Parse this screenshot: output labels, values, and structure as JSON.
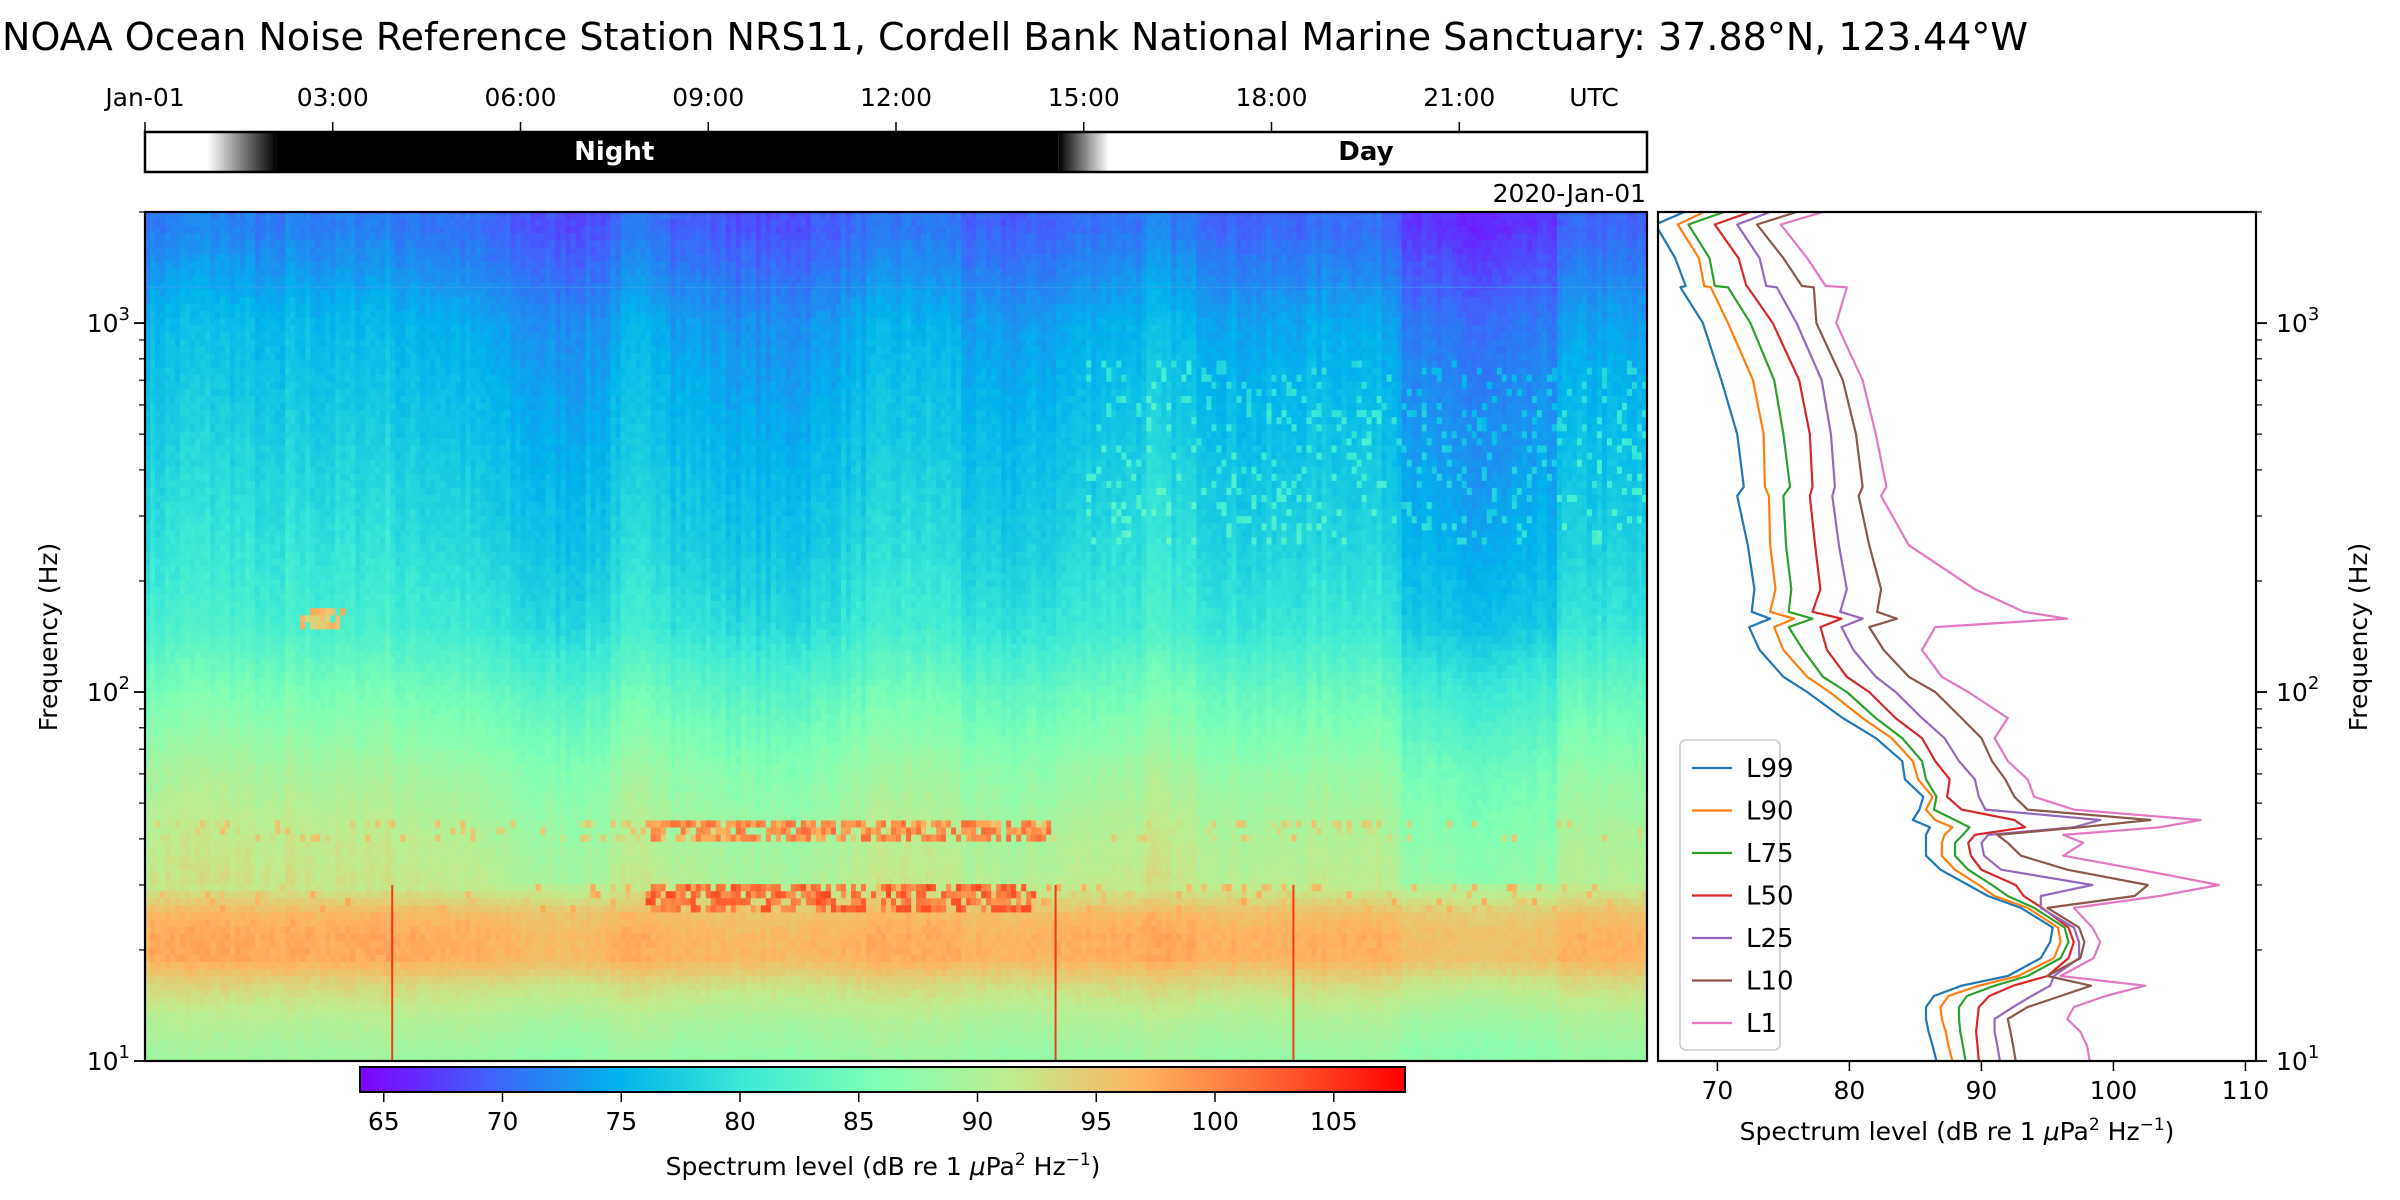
{
  "chart_data": [
    {
      "id": "spectrogram",
      "type": "heatmap",
      "title": "NOAA Ocean Noise Reference Station NRS11, Cordell Bank National Marine Sanctuary:  37.88°N, 123.44°W",
      "date_label": "2020-Jan-01",
      "xlabel": "",
      "ylabel": "Frequency (Hz)",
      "yscale": "log",
      "ylim": [
        10,
        2000
      ],
      "xlim_hours": [
        0,
        24
      ],
      "time_ticks": [
        {
          "hour": 0,
          "label": "Jan-01"
        },
        {
          "hour": 3,
          "label": "03:00"
        },
        {
          "hour": 6,
          "label": "06:00"
        },
        {
          "hour": 9,
          "label": "09:00"
        },
        {
          "hour": 12,
          "label": "12:00"
        },
        {
          "hour": 15,
          "label": "15:00"
        },
        {
          "hour": 18,
          "label": "18:00"
        },
        {
          "hour": 21,
          "label": "21:00"
        }
      ],
      "time_unit_label": "UTC",
      "y_ticks": [
        {
          "value": 10,
          "base": "10",
          "exp": "1"
        },
        {
          "value": 100,
          "base": "10",
          "exp": "2"
        },
        {
          "value": 1000,
          "base": "10",
          "exp": "3"
        }
      ],
      "colormap": "rainbow",
      "clim": [
        64,
        108
      ],
      "colorbar": {
        "label": "Spectrum level (dB re 1 μPa² Hz⁻¹)",
        "label_main": "Spectrum level (dB re 1 ",
        "label_mu": "μ",
        "label_pa": "Pa",
        "label_sup1": "2",
        "label_hz": " Hz",
        "label_sup2": "−1",
        "label_close": ")",
        "ticks": [
          65,
          70,
          75,
          80,
          85,
          90,
          95,
          100,
          105
        ]
      },
      "background_profile": {
        "freq_hz": [
          10,
          13,
          16,
          19,
          22,
          25,
          30,
          40,
          60,
          100,
          150,
          250,
          500,
          1000,
          1800
        ],
        "level_db": [
          88,
          90,
          93,
          97,
          97,
          96,
          91,
          90,
          88,
          84,
          80,
          78,
          76,
          74,
          70
        ]
      },
      "bands": [
        {
          "name": "shipping 40 Hz band",
          "freq_hz": 42,
          "level_db": 102,
          "hours": [
            8,
            14.5
          ]
        },
        {
          "name": "shipping 28 Hz band",
          "freq_hz": 28,
          "level_db": 104,
          "hours": [
            8,
            14.2
          ]
        },
        {
          "name": "tone 160 Hz",
          "freq_hz": 158,
          "level_db": 98,
          "hours": [
            2.5,
            3.2
          ]
        }
      ],
      "daynight": {
        "segments": [
          {
            "label": "Night",
            "start_hour": 2.1,
            "end_hour": 14.6
          },
          {
            "label": "Day",
            "start_hour": 15.4,
            "end_hour": 24
          }
        ],
        "twilight": [
          [
            1.0,
            2.1
          ],
          [
            14.6,
            15.4
          ]
        ]
      }
    },
    {
      "id": "percentile-profile",
      "type": "line",
      "xlabel": "Spectrum level (dB re 1 μPa² Hz⁻¹)",
      "ylabel": "Frequency (Hz)",
      "xlim": [
        65.5,
        110.8
      ],
      "ylim": [
        10,
        2000
      ],
      "yscale": "log",
      "x_ticks": [
        70,
        80,
        90,
        100,
        110
      ],
      "y_ticks": [
        {
          "value": 10,
          "base": "10",
          "exp": "1"
        },
        {
          "value": 100,
          "base": "10",
          "exp": "2"
        },
        {
          "value": 1000,
          "base": "10",
          "exp": "3"
        }
      ],
      "legend_position": "lower-left",
      "freq_hz": [
        2000,
        1850,
        1500,
        1260,
        1250,
        1000,
        700,
        500,
        360,
        340,
        250,
        190,
        165,
        158,
        150,
        130,
        110,
        100,
        85,
        75,
        65,
        58,
        52,
        48,
        45,
        43,
        41,
        39,
        36,
        33,
        30,
        28,
        26,
        23,
        21,
        19,
        17,
        16,
        15,
        14,
        13,
        12,
        11,
        10
      ],
      "series": [
        {
          "name": "L99",
          "color": "#1f77b4",
          "values": [
            67.5,
            65.3,
            66.8,
            67.6,
            67.2,
            68.9,
            70.3,
            71.5,
            72.0,
            71.5,
            72.3,
            72.8,
            72.6,
            74.0,
            72.4,
            73.2,
            75.0,
            76.8,
            79.5,
            82.0,
            84.0,
            84.2,
            85.6,
            85.3,
            84.8,
            86.1,
            85.8,
            85.8,
            85.8,
            86.9,
            89.0,
            90.5,
            93.0,
            95.4,
            95.2,
            94.5,
            92.0,
            88.5,
            86.4,
            85.8,
            85.8,
            86.0,
            86.3,
            86.6
          ]
        },
        {
          "name": "L90",
          "color": "#ff7f0e",
          "values": [
            69.0,
            67.0,
            68.6,
            69.0,
            69.5,
            70.8,
            72.7,
            73.5,
            73.6,
            73.9,
            74.0,
            74.4,
            74.0,
            75.8,
            74.3,
            75.0,
            76.8,
            78.5,
            81.0,
            83.2,
            84.8,
            85.2,
            86.3,
            85.8,
            86.5,
            87.8,
            87.2,
            87.0,
            87.0,
            88.0,
            89.8,
            91.0,
            93.5,
            95.8,
            96.0,
            95.5,
            92.8,
            89.8,
            87.5,
            86.9,
            87.0,
            87.3,
            87.5,
            87.8
          ]
        },
        {
          "name": "L75",
          "color": "#2ca02c",
          "values": [
            70.5,
            67.8,
            69.4,
            69.8,
            70.8,
            72.5,
            74.3,
            75.0,
            75.5,
            75.0,
            75.2,
            75.6,
            75.4,
            77.2,
            75.4,
            76.5,
            78.0,
            79.8,
            82.0,
            84.0,
            85.5,
            85.8,
            86.6,
            86.4,
            88.0,
            89.1,
            88.6,
            88.0,
            88.0,
            89.0,
            90.8,
            92.0,
            94.0,
            96.3,
            96.6,
            96.0,
            93.5,
            91.0,
            88.9,
            88.3,
            88.3,
            88.4,
            88.6,
            88.8
          ]
        },
        {
          "name": "L50",
          "color": "#d62728",
          "values": [
            72.5,
            69.8,
            71.6,
            72.2,
            72.3,
            74.2,
            76.2,
            77.0,
            77.2,
            77.0,
            77.4,
            77.8,
            77.2,
            79.4,
            77.8,
            78.3,
            79.8,
            81.5,
            83.5,
            85.5,
            86.5,
            87.6,
            87.4,
            88.5,
            92.5,
            93.3,
            89.5,
            89.0,
            89.2,
            90.0,
            92.6,
            93.2,
            94.6,
            96.6,
            97.0,
            96.6,
            95.0,
            92.4,
            90.6,
            89.8,
            89.7,
            89.6,
            89.7,
            89.8
          ]
        },
        {
          "name": "L25",
          "color": "#9467bd",
          "values": [
            74.0,
            71.5,
            73.2,
            73.7,
            74.5,
            76.0,
            77.9,
            78.6,
            78.9,
            78.7,
            79.2,
            79.8,
            79.3,
            81.0,
            79.4,
            80.3,
            82.0,
            83.5,
            85.5,
            87.2,
            88.3,
            89.5,
            89.8,
            90.3,
            99.0,
            97.0,
            90.5,
            90.0,
            90.2,
            91.5,
            98.4,
            94.5,
            94.5,
            97.0,
            97.4,
            97.4,
            95.5,
            95.2,
            93.8,
            92.4,
            91.0,
            91.0,
            91.2,
            91.4
          ]
        },
        {
          "name": "L10",
          "color": "#8c564b",
          "values": [
            76.0,
            73.0,
            75.0,
            76.4,
            77.3,
            77.5,
            79.5,
            80.5,
            81.0,
            80.7,
            81.5,
            82.4,
            82.1,
            83.6,
            81.5,
            82.6,
            84.5,
            86.5,
            88.5,
            90.0,
            90.8,
            91.8,
            92.5,
            93.5,
            102.8,
            97.5,
            91.2,
            92.0,
            93.0,
            96.5,
            102.6,
            101.6,
            95.0,
            97.4,
            97.8,
            97.5,
            95.0,
            98.3,
            96.0,
            93.5,
            92.0,
            92.2,
            92.4,
            92.6
          ]
        },
        {
          "name": "L1",
          "color": "#e377c2",
          "values": [
            78.0,
            74.8,
            76.8,
            78.2,
            79.8,
            79.0,
            81.0,
            82.0,
            82.8,
            82.4,
            84.5,
            89.5,
            93.2,
            96.5,
            86.5,
            85.5,
            87.0,
            89.0,
            92.0,
            91.0,
            92.0,
            93.5,
            94.0,
            97.0,
            106.6,
            103.5,
            96.2,
            97.7,
            96.2,
            102.0,
            108.0,
            103.5,
            97.0,
            98.4,
            99.0,
            98.5,
            96.0,
            102.4,
            99.4,
            97.0,
            96.5,
            97.5,
            98.0,
            98.2
          ]
        }
      ]
    }
  ]
}
